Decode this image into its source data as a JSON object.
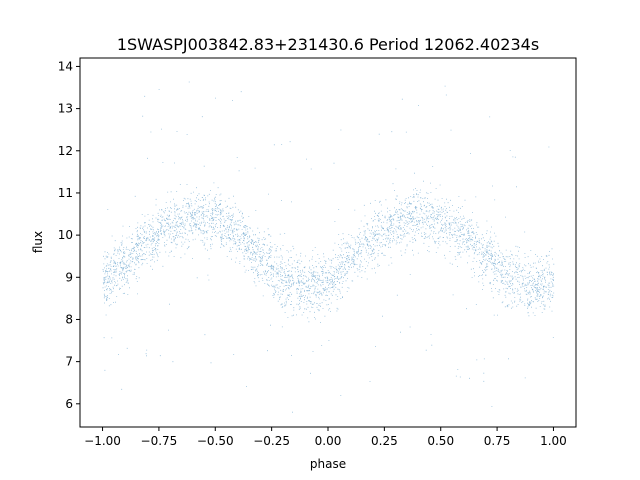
{
  "chart_data": {
    "type": "scatter",
    "title": "1SWASPJ003842.83+231430.6 Period 12062.40234s",
    "xlabel": "phase",
    "ylabel": "flux",
    "xlim": [
      -1.1,
      1.1
    ],
    "ylim": [
      5.45,
      14.2
    ],
    "xticks": [
      -1.0,
      -0.75,
      -0.5,
      -0.25,
      0.0,
      0.25,
      0.5,
      0.75,
      1.0
    ],
    "xtick_labels": [
      "−1.00",
      "−0.75",
      "−0.50",
      "−0.25",
      "0.00",
      "0.25",
      "0.50",
      "0.75",
      "1.00"
    ],
    "yticks": [
      6,
      7,
      8,
      9,
      10,
      11,
      12,
      13,
      14
    ],
    "ytick_labels": [
      "6",
      "7",
      "8",
      "9",
      "10",
      "11",
      "12",
      "13",
      "14"
    ],
    "grid": false,
    "marker_color": "#1f77b4",
    "series": [
      {
        "phase": [
          -1.0,
          -0.9,
          -0.8,
          -0.7,
          -0.6,
          -0.5,
          -0.4,
          -0.3,
          -0.2,
          -0.1,
          0.0,
          0.1,
          0.2,
          0.3,
          0.4,
          0.5,
          0.6,
          0.7,
          0.8,
          0.9,
          1.0
        ],
        "flux": [
          8.95,
          9.35,
          9.85,
          10.25,
          10.45,
          10.35,
          10.0,
          9.45,
          8.95,
          8.75,
          8.9,
          9.4,
          9.9,
          10.3,
          10.45,
          10.35,
          10.0,
          9.5,
          9.0,
          8.75,
          8.9
        ]
      }
    ]
  }
}
